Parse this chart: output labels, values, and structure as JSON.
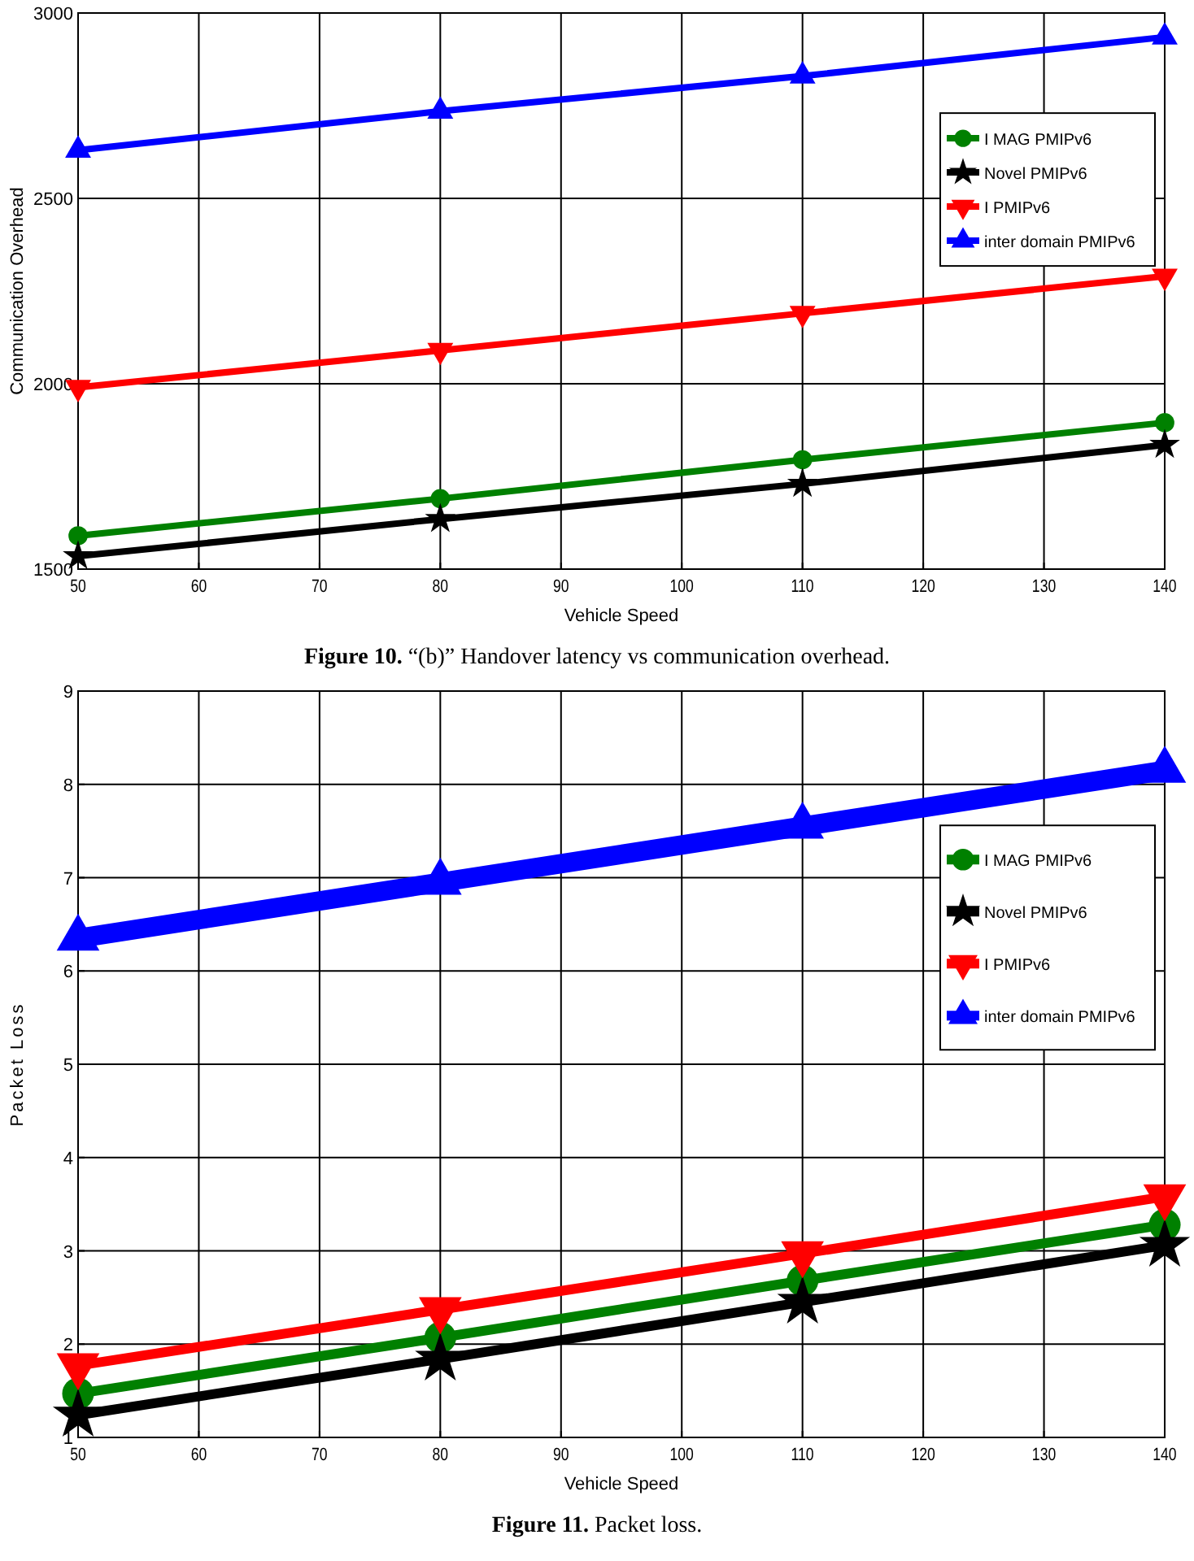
{
  "chart_data": [
    {
      "type": "line",
      "xlabel": "Vehicle Speed",
      "ylabel": "Communication Overhead",
      "x": [
        50,
        80,
        110,
        140
      ],
      "xlim": [
        50,
        140
      ],
      "xticks": [
        50,
        60,
        70,
        80,
        90,
        100,
        110,
        120,
        130,
        140
      ],
      "ylim": [
        1500,
        3000
      ],
      "yticks": [
        1500,
        2000,
        2500,
        3000
      ],
      "grid": true,
      "legend": "right",
      "line_style": "solid",
      "series": [
        {
          "name": "I MAG PMIPv6",
          "color": "#008000",
          "marker": "circle",
          "values": [
            1590,
            1690,
            1795,
            1895
          ]
        },
        {
          "name": "Novel PMIPv6",
          "color": "#000000",
          "marker": "star",
          "values": [
            1535,
            1635,
            1730,
            1835
          ]
        },
        {
          "name": "I PMIPv6",
          "color": "#ff0000",
          "marker": "triangle-down",
          "values": [
            1990,
            2090,
            2190,
            2290
          ]
        },
        {
          "name": "inter domain PMIPv6",
          "color": "#0000ff",
          "marker": "triangle",
          "values": [
            2630,
            2735,
            2830,
            2935
          ]
        }
      ],
      "annotations": [
        "Figure 10. “(b)” Handover latency vs communication overhead."
      ]
    },
    {
      "type": "line",
      "xlabel": "Vehicle Speed",
      "ylabel": "Packet Loss",
      "x": [
        50,
        80,
        110,
        140
      ],
      "xlim": [
        50,
        140
      ],
      "xticks": [
        50,
        60,
        70,
        80,
        90,
        100,
        110,
        120,
        130,
        140
      ],
      "ylim": [
        1,
        9
      ],
      "yticks": [
        1,
        2,
        3,
        4,
        5,
        6,
        7,
        8,
        9
      ],
      "grid": true,
      "legend": "right",
      "line_style": "solid",
      "series": [
        {
          "name": "I MAG PMIPv6",
          "color": "#008000",
          "marker": "circle",
          "values": [
            1.47,
            2.07,
            2.68,
            3.28
          ]
        },
        {
          "name": "Novel PMIPv6",
          "color": "#000000",
          "marker": "star",
          "values": [
            1.24,
            1.84,
            2.45,
            3.06
          ]
        },
        {
          "name": "I PMIPv6",
          "color": "#ff0000",
          "marker": "triangle-down",
          "values": [
            1.77,
            2.37,
            2.97,
            3.58
          ]
        },
        {
          "name": "inter domain PMIPv6",
          "color": "#0000ff",
          "marker": "triangle",
          "values": [
            6.35,
            6.95,
            7.55,
            8.15
          ]
        }
      ],
      "annotations": [
        "Figure 11. Packet loss."
      ]
    }
  ]
}
